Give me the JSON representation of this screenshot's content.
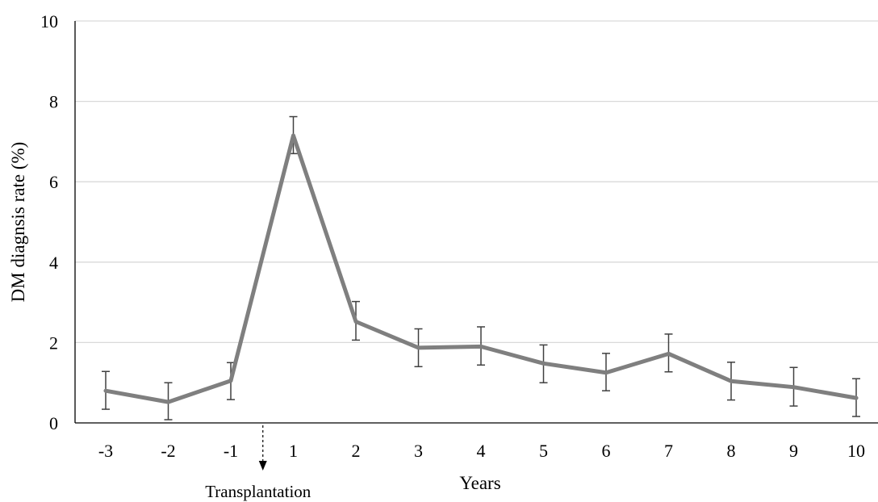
{
  "chart_data": {
    "type": "line",
    "title": "",
    "xlabel": "Years",
    "ylabel": "DM diagnsis rate (%)",
    "categories": [
      "-3",
      "-2",
      "-1",
      "1",
      "2",
      "3",
      "4",
      "5",
      "6",
      "7",
      "8",
      "9",
      "10"
    ],
    "ylim": [
      0,
      10
    ],
    "yticks": [
      "0",
      "2",
      "4",
      "6",
      "8",
      "10"
    ],
    "grid": "horizontal",
    "legend": "none",
    "series": [
      {
        "values": [
          0.8,
          0.52,
          1.05,
          7.15,
          2.52,
          1.87,
          1.9,
          1.48,
          1.25,
          1.72,
          1.04,
          0.89,
          0.62
        ],
        "error_upper": [
          1.28,
          1.0,
          1.5,
          7.62,
          3.02,
          2.34,
          2.39,
          1.94,
          1.73,
          2.21,
          1.51,
          1.38,
          1.1
        ],
        "error_lower": [
          0.34,
          0.08,
          0.58,
          6.7,
          2.06,
          1.4,
          1.44,
          1.0,
          0.8,
          1.27,
          0.57,
          0.42,
          0.16
        ],
        "color": "#7f7f7f"
      }
    ],
    "annotation": {
      "label": "Transplantation",
      "marker": "down-arrow-dashed",
      "between": [
        "-1",
        "1"
      ]
    }
  }
}
